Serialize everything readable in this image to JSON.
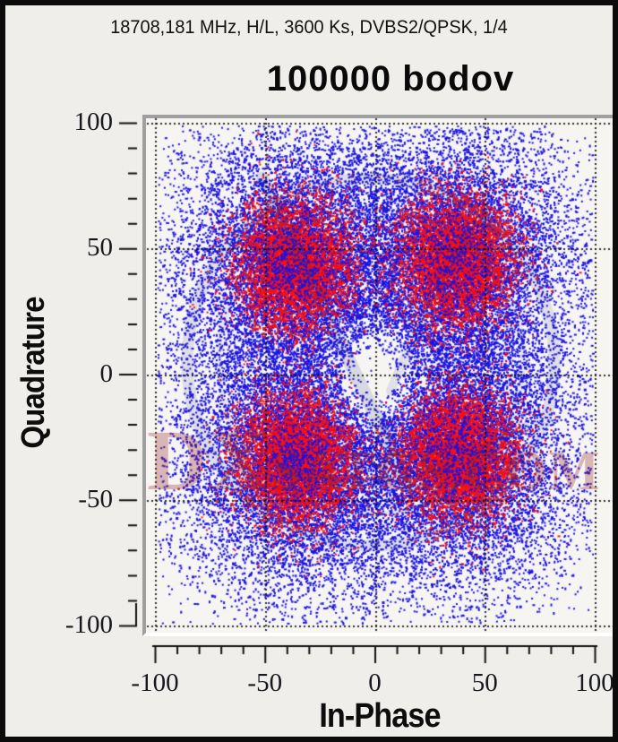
{
  "header": {
    "signal_info": "18708,181 MHz, H/L, 3600 Ks, DVBS2/QPSK, 1/4",
    "title": "100000 bodov"
  },
  "watermark": {
    "prefix": "DX",
    "suffix": "SATCS.COM"
  },
  "chart_data": {
    "type": "scatter",
    "title": "100000 bodov",
    "subtitle": "18708,181 MHz, H/L, 3600 Ks, DVBS2/QPSK, 1/4",
    "xlabel": "In-Phase",
    "ylabel": "Quadrature",
    "xlim": [
      -100,
      100
    ],
    "ylim": [
      -100,
      100
    ],
    "x_ticks": [
      -100,
      -50,
      0,
      50,
      100
    ],
    "y_ticks": [
      -100,
      -50,
      0,
      50,
      100
    ],
    "minor_tick_step": 10,
    "grid": "dotted",
    "points_total": 100000,
    "modulation": "DVBS2/QPSK",
    "colors": {
      "noise": "#1c13e0",
      "core": "#fa0f0f",
      "grid": "rgba(12,12,12,0.85)",
      "plot_bg": "#f6f5f2",
      "outer_bg": "#efeeeb"
    },
    "center_hole_radius": 13,
    "clusters": [
      {
        "center": [
          -37,
          44
        ],
        "noise_sigma": 29,
        "noise_points": 9500,
        "core_sigma": 13,
        "core_points": 5200,
        "speckle_points": 900
      },
      {
        "center": [
          37,
          46
        ],
        "noise_sigma": 29,
        "noise_points": 9500,
        "core_sigma": 13,
        "core_points": 5200,
        "speckle_points": 900
      },
      {
        "center": [
          -36,
          -34
        ],
        "noise_sigma": 29,
        "noise_points": 9500,
        "core_sigma": 13,
        "core_points": 5200,
        "speckle_points": 900
      },
      {
        "center": [
          38,
          -32
        ],
        "noise_sigma": 29,
        "noise_points": 9500,
        "core_sigma": 13,
        "core_points": 5200,
        "speckle_points": 900
      }
    ]
  }
}
